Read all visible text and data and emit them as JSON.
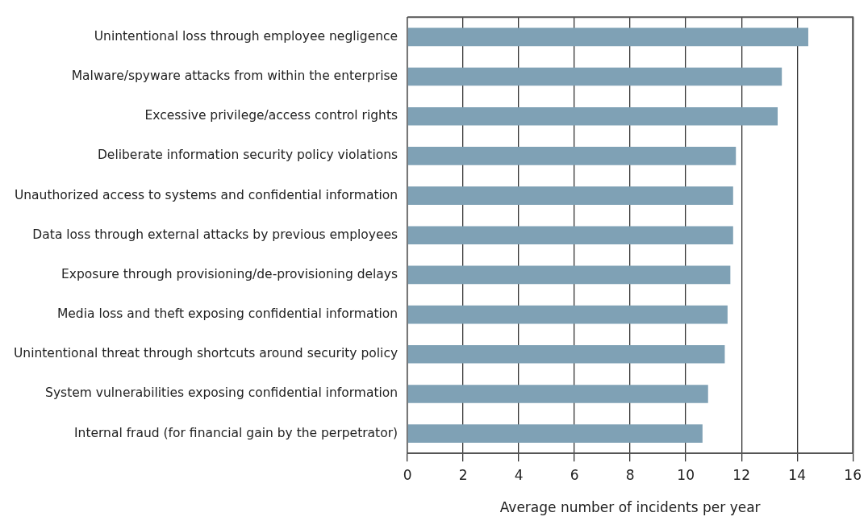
{
  "chart_data": {
    "type": "bar",
    "orientation": "horizontal",
    "xlabel": "Average number of incidents per year",
    "categories": [
      "Unintentional loss through employee negligence",
      "Malware/spyware attacks from within the enterprise",
      "Excessive privilege/access control rights",
      "Deliberate information security policy violations",
      "Unauthorized access to systems and confidential information",
      "Data loss through external attacks by previous employees",
      "Exposure through provisioning/de-provisioning delays",
      "Media loss and theft exposing confidential information",
      "Unintentional threat through shortcuts around security policy",
      "System vulnerabilities exposing confidential information",
      "Internal fraud (for financial gain by the perpetrator)"
    ],
    "values": [
      14.4,
      13.45,
      13.3,
      11.8,
      11.7,
      11.7,
      11.6,
      11.5,
      11.4,
      10.8,
      10.6
    ],
    "color": "#7fa1b5",
    "xlim": [
      0,
      16
    ],
    "xticks": [
      0,
      2,
      4,
      6,
      8,
      10,
      12,
      14,
      16
    ],
    "grid": "x"
  }
}
